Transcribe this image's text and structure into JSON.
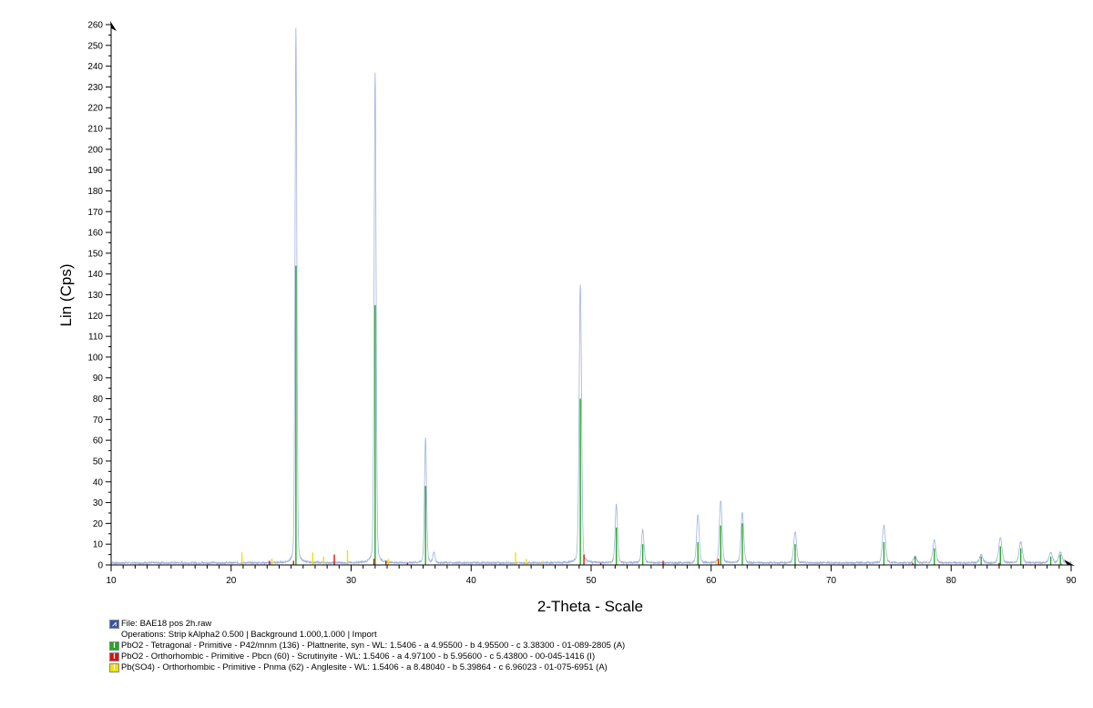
{
  "chart_data": {
    "type": "line",
    "xlabel": "2-Theta - Scale",
    "ylabel": "Lin (Cps)",
    "xlim": [
      10,
      90
    ],
    "ylim": [
      0,
      260
    ],
    "x_ticks": [
      10,
      20,
      30,
      40,
      50,
      60,
      70,
      80,
      90
    ],
    "x_tick_labels": [
      "10",
      "20",
      "30",
      "40",
      "50",
      "60",
      "70",
      "80",
      "90"
    ],
    "y_ticks": [
      0,
      10,
      20,
      30,
      40,
      50,
      60,
      70,
      80,
      90,
      100,
      110,
      120,
      130,
      140,
      150,
      160,
      170,
      180,
      190,
      200,
      210,
      220,
      230,
      240,
      250,
      260
    ],
    "y_tick_labels": [
      "0",
      "10",
      "20",
      "30",
      "40",
      "50",
      "60",
      "70",
      "80",
      "90",
      "100",
      "110",
      "120",
      "130",
      "140",
      "150",
      "160",
      "170",
      "180",
      "190",
      "200",
      "210",
      "220",
      "230",
      "240",
      "250",
      "260"
    ],
    "grid": false,
    "baseline": 1,
    "pattern_peaks": [
      {
        "x": 25.4,
        "y": 258
      },
      {
        "x": 32.0,
        "y": 237
      },
      {
        "x": 36.2,
        "y": 61
      },
      {
        "x": 36.9,
        "y": 6
      },
      {
        "x": 49.1,
        "y": 135
      },
      {
        "x": 52.1,
        "y": 29
      },
      {
        "x": 54.3,
        "y": 17
      },
      {
        "x": 58.9,
        "y": 24
      },
      {
        "x": 60.8,
        "y": 31
      },
      {
        "x": 62.6,
        "y": 25
      },
      {
        "x": 67.0,
        "y": 16
      },
      {
        "x": 74.4,
        "y": 19
      },
      {
        "x": 77.0,
        "y": 4
      },
      {
        "x": 78.6,
        "y": 12
      },
      {
        "x": 82.5,
        "y": 5
      },
      {
        "x": 84.1,
        "y": 13
      },
      {
        "x": 85.8,
        "y": 11
      },
      {
        "x": 88.3,
        "y": 6
      },
      {
        "x": 89.1,
        "y": 6
      }
    ],
    "series": [
      {
        "name": "PbO2 - Tetragonal - Primitive - P42/mnm (136) - Plattnerite, syn - WL: 1.5406 - a 4.95500 - b 4.95500 - c 3.38300 - 01-089-2805 (A)",
        "color": "#22aa22",
        "x": [
          25.4,
          32.0,
          36.2,
          49.1,
          52.1,
          54.3,
          58.9,
          60.8,
          62.6,
          67.0,
          74.4,
          77.0,
          78.6,
          82.5,
          84.1,
          85.8,
          88.3,
          89.1
        ],
        "y": [
          144,
          125,
          38,
          80,
          18,
          10,
          11,
          19,
          20,
          10,
          11,
          4,
          8,
          4,
          9,
          8,
          4,
          5
        ]
      },
      {
        "name": "PbO2 - Orthorhombic - Primitive - Pbcn (60) - Scrutinyite - WL: 1.5406 - a 4.97100 - b 5.95600 - c 5.43800 - 00-045-1416 (I)",
        "color": "#dd1111",
        "x": [
          23.2,
          25.2,
          28.6,
          31.9,
          32.9,
          34.7,
          49.4,
          50.8,
          56.0,
          60.6,
          76.8,
          84.0
        ],
        "y": [
          2,
          2,
          5,
          3,
          2,
          1,
          5,
          1,
          2,
          3,
          1,
          1
        ]
      },
      {
        "name": "Pb(SO4) - Orthorhombic - Primitive - Pnma (62) - Anglesite - WL: 1.5406 - a 8.48040 - b 5.39864 - c 6.96023 - 01-075-6951 (A)",
        "color": "#f0e000",
        "x": [
          20.9,
          23.4,
          26.8,
          27.7,
          29.7,
          33.1,
          43.7,
          44.6,
          46.0,
          52.7,
          60.4,
          89.2
        ],
        "y": [
          6,
          3,
          6,
          4,
          7,
          3,
          6,
          3,
          2,
          1,
          2,
          1
        ]
      }
    ]
  },
  "legend": {
    "file": "File: BAE18 pos 2h.raw",
    "operations": "Operations: Strip kAlpha2 0.500 | Background 1.000,1.000 | Import",
    "file_icon_color": "#3355aa",
    "pattern_color": "#9fb3dd"
  }
}
